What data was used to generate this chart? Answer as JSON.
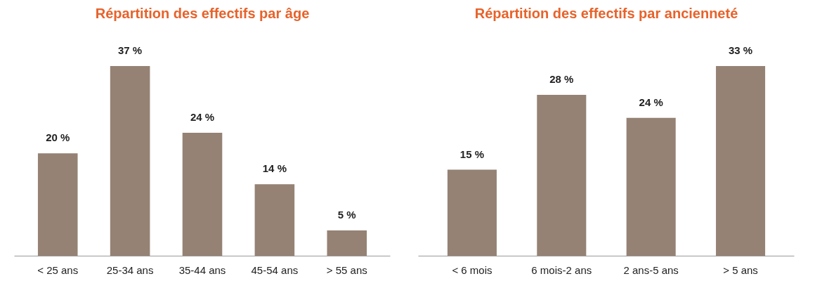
{
  "chart_data": [
    {
      "type": "bar",
      "title": "Répartition des effectifs par âge",
      "categories": [
        "< 25 ans",
        "25-34 ans",
        "35-44 ans",
        "45-54 ans",
        "> 55 ans"
      ],
      "values": [
        20,
        37,
        24,
        14,
        5
      ],
      "value_labels": [
        "20 %",
        "37 %",
        "24 %",
        "14 %",
        "5 %"
      ],
      "color": "#958274",
      "tick_labels": "x"
    },
    {
      "type": "bar",
      "title": "Répartition des effectifs par ancienneté",
      "categories": [
        "< 6 mois",
        "6 mois-2 ans",
        "2 ans-5 ans",
        "> 5 ans"
      ],
      "values": [
        15,
        28,
        24,
        33
      ],
      "value_labels": [
        "15 %",
        "28 %",
        "24 %",
        "33 %"
      ],
      "color": "#958274",
      "tick_labels": "x"
    }
  ]
}
